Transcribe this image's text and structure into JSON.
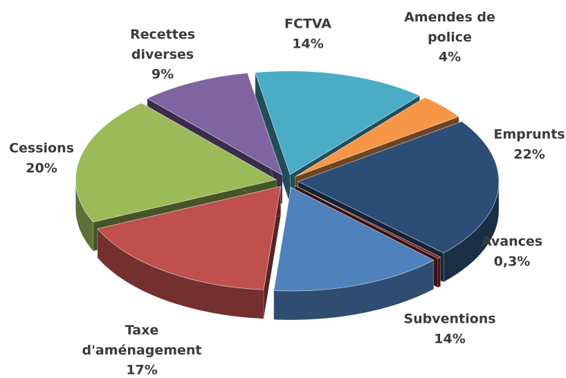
{
  "chart_data": {
    "type": "pie3d",
    "categories": [
      "FCTVA",
      "Amendes de police",
      "Emprunts",
      "Avances",
      "Subventions",
      "Taxe d'aménagement",
      "Cessions",
      "Recettes diverses"
    ],
    "values": [
      14,
      4,
      22,
      0.3,
      14,
      17,
      20,
      9
    ],
    "value_labels": [
      "14%",
      "4%",
      "22%",
      "0,3%",
      "14%",
      "17%",
      "20%",
      "9%"
    ],
    "colors": [
      "#4bacc6",
      "#f79646",
      "#2c4d75",
      "#7b1e1e",
      "#4f81bd",
      "#c0504d",
      "#9bbb59",
      "#8064a2"
    ]
  }
}
